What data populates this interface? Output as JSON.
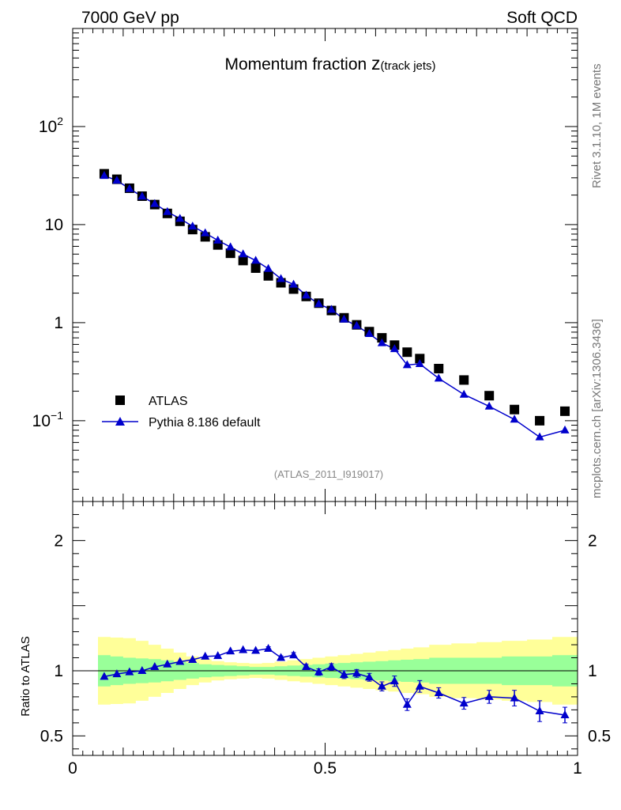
{
  "header": {
    "energy_label": "7000 GeV pp",
    "process_label": "Soft QCD"
  },
  "side_labels": {
    "rivet": "Rivet 3.1.10,  1M events",
    "mcplots": "mcplots.cern.ch [arXiv:1306.3436]"
  },
  "chart_data": [
    {
      "type": "scatter",
      "panel": "main",
      "title_main": "Momentum fraction ",
      "title_z": "z",
      "title_sub": "(track jets)",
      "analysis_tag": "(ATLAS_2011_I919017)",
      "yscale": "log",
      "xlim": [
        0,
        1
      ],
      "ylim": [
        0.015,
        1000
      ],
      "y_ticks": [
        {
          "value": 0.1,
          "base": "10",
          "exp": "−1"
        },
        {
          "value": 1,
          "base": "1",
          "exp": ""
        },
        {
          "value": 10,
          "base": "10",
          "exp": ""
        },
        {
          "value": 100,
          "base": "10",
          "exp": "2"
        }
      ],
      "legend": [
        "ATLAS",
        "Pythia 8.186 default"
      ],
      "legend_position": "bottom-left",
      "x": [
        0.0625,
        0.0875,
        0.1125,
        0.1375,
        0.1625,
        0.1875,
        0.2125,
        0.2375,
        0.2625,
        0.2875,
        0.3125,
        0.3375,
        0.3625,
        0.3875,
        0.4125,
        0.4375,
        0.4625,
        0.4875,
        0.5125,
        0.5375,
        0.5625,
        0.5875,
        0.6125,
        0.6375,
        0.6625,
        0.6875,
        0.725,
        0.775,
        0.825,
        0.875,
        0.925,
        0.975
      ],
      "series": [
        {
          "name": "ATLAS",
          "marker": "square",
          "color": "#000000",
          "values": [
            33,
            29,
            23.5,
            19.5,
            16,
            13,
            10.8,
            8.9,
            7.5,
            6.2,
            5.1,
            4.3,
            3.6,
            3.0,
            2.55,
            2.2,
            1.85,
            1.58,
            1.33,
            1.12,
            0.95,
            0.81,
            0.7,
            0.59,
            0.5,
            0.43,
            0.34,
            0.26,
            0.18,
            0.13,
            0.1,
            0.125
          ]
        },
        {
          "name": "Pythia 8.186 default",
          "marker": "triangle",
          "color": "#0000cc",
          "values": [
            31.5,
            28.2,
            23.2,
            19.4,
            16.3,
            13.5,
            11.5,
            9.6,
            8.2,
            6.9,
            5.9,
            5.0,
            4.3,
            3.55,
            2.8,
            2.45,
            1.9,
            1.55,
            1.36,
            1.08,
            0.93,
            0.77,
            0.62,
            0.54,
            0.37,
            0.38,
            0.27,
            0.185,
            0.14,
            0.103,
            0.068,
            0.08
          ]
        }
      ]
    },
    {
      "type": "line",
      "panel": "ratio",
      "ylabel": "Ratio to ATLAS",
      "xlim": [
        0,
        1
      ],
      "ylim": [
        0.35,
        2.3
      ],
      "x_ticks": [
        {
          "value": 0,
          "label": "0"
        },
        {
          "value": 0.5,
          "label": "0.5"
        },
        {
          "value": 1,
          "label": "1"
        }
      ],
      "y_ticks": [
        {
          "value": 0.5,
          "label": "0.5"
        },
        {
          "value": 1,
          "label": "1"
        },
        {
          "value": 2,
          "label": "2"
        }
      ],
      "ratio": [
        0.955,
        0.975,
        0.99,
        1.0,
        1.03,
        1.05,
        1.07,
        1.085,
        1.11,
        1.115,
        1.15,
        1.16,
        1.155,
        1.17,
        1.1,
        1.12,
        1.03,
        0.99,
        1.03,
        0.97,
        0.98,
        0.95,
        0.88,
        0.92,
        0.74,
        0.88,
        0.83,
        0.75,
        0.8,
        0.79,
        0.69,
        0.66
      ],
      "ratio_err": [
        0.01,
        0.01,
        0.01,
        0.01,
        0.01,
        0.01,
        0.01,
        0.01,
        0.01,
        0.01,
        0.01,
        0.01,
        0.01,
        0.015,
        0.015,
        0.02,
        0.02,
        0.025,
        0.025,
        0.03,
        0.03,
        0.03,
        0.035,
        0.04,
        0.045,
        0.045,
        0.04,
        0.045,
        0.05,
        0.06,
        0.08,
        0.06
      ],
      "band_inner": [
        0.12,
        0.11,
        0.1,
        0.095,
        0.09,
        0.08,
        0.07,
        0.06,
        0.05,
        0.045,
        0.04,
        0.035,
        0.03,
        0.03,
        0.035,
        0.04,
        0.045,
        0.05,
        0.055,
        0.06,
        0.065,
        0.07,
        0.075,
        0.08,
        0.085,
        0.09,
        0.1,
        0.1,
        0.1,
        0.11,
        0.11,
        0.12
      ],
      "band_outer": [
        0.26,
        0.255,
        0.25,
        0.23,
        0.2,
        0.17,
        0.14,
        0.11,
        0.09,
        0.075,
        0.065,
        0.06,
        0.055,
        0.06,
        0.07,
        0.08,
        0.09,
        0.1,
        0.11,
        0.12,
        0.13,
        0.14,
        0.15,
        0.16,
        0.17,
        0.18,
        0.2,
        0.21,
        0.22,
        0.23,
        0.24,
        0.26
      ],
      "band_inner_color": "#99ff99",
      "band_outer_color": "#ffff99",
      "line_color": "#0000cc"
    }
  ]
}
